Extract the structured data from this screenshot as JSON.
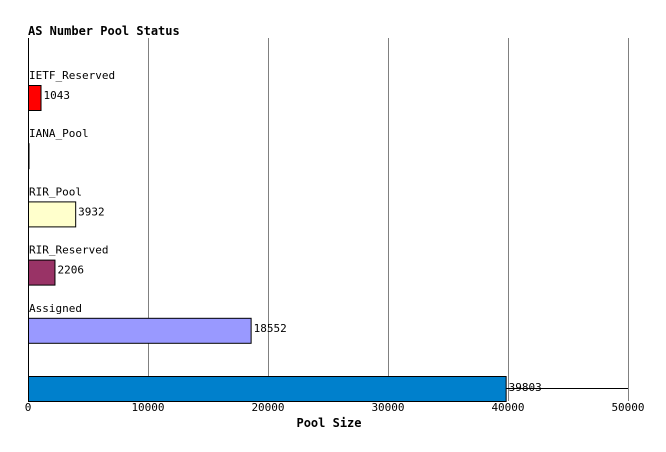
{
  "chart_data": {
    "type": "bar",
    "orientation": "horizontal",
    "title": "AS Number Pool Status",
    "xlabel": "Pool Size",
    "ylabel": "",
    "xlim": [
      0,
      50000
    ],
    "x_ticks": [
      "0",
      "10000",
      "20000",
      "30000",
      "40000",
      "50000"
    ],
    "grid": "vertical",
    "categories": [
      "IETF_Reserved",
      "IANA_Pool",
      "RIR_Pool",
      "RIR_Reserved",
      "Assigned",
      ""
    ],
    "values": [
      1043,
      0,
      3932,
      2206,
      18552,
      39803
    ],
    "value_labels": [
      "1043",
      "",
      "3932",
      "2206",
      "18552",
      "39803"
    ],
    "colors": [
      "#ff0000",
      "#000000",
      "#ffffcc",
      "#993366",
      "#9999ff",
      "#0080cc"
    ]
  }
}
